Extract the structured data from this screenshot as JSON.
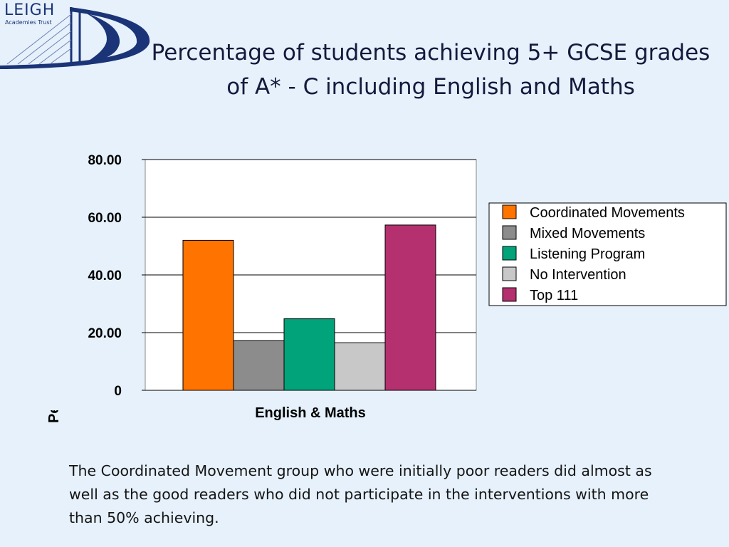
{
  "logo": {
    "name": "LEIGH",
    "subtitle": "Academies Trust"
  },
  "title": "Percentage of students achieving 5+ GCSE grades of A* - C including English and Maths",
  "caption": "The Coordinated Movement group who were initially poor readers did almost as well as the good readers who did not participate in the interventions with more than 50% achieving.",
  "chart_data": {
    "type": "bar",
    "categories": [
      "English & Maths"
    ],
    "series": [
      {
        "name": "Coordinated Movements",
        "values": [
          52.0
        ],
        "color": "#ff7300"
      },
      {
        "name": "Mixed Movements",
        "values": [
          17.2
        ],
        "color": "#8c8c8c"
      },
      {
        "name": "Listening Program",
        "values": [
          24.8
        ],
        "color": "#00a37a"
      },
      {
        "name": "No Intervention",
        "values": [
          16.5
        ],
        "color": "#c8c8c8"
      },
      {
        "name": "Top 111",
        "values": [
          57.3
        ],
        "color": "#b5306e"
      }
    ],
    "ylim": [
      0,
      80
    ],
    "yticks": [
      "0",
      "20.00",
      "40.00",
      "60.00",
      "80.00"
    ],
    "xlabel": "English & Maths",
    "ylabel": "Percentage of students in gro",
    "grid": true,
    "legend": "right"
  }
}
